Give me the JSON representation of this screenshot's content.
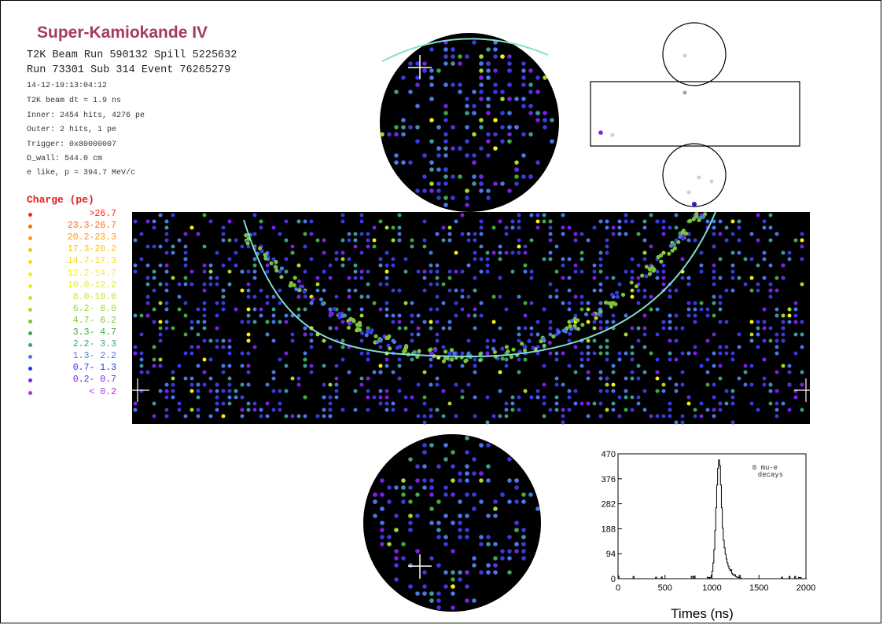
{
  "header": {
    "title": "Super-Kamiokande IV",
    "line1": "T2K Beam Run 590132 Spill 5225632",
    "line2": "Run 73301 Sub 314 Event 76265279",
    "details": [
      "14-12-19:13:04:12",
      "T2K beam dt =      1.9 ns",
      "Inner: 2454 hits, 4276 pe",
      "Outer: 2 hits, 1 pe",
      "Trigger: 0x80000007",
      "D_wall: 544.0 cm",
      "e like, p = 394.7 MeV/c"
    ]
  },
  "charge_legend": {
    "title": "Charge (pe)",
    "items": [
      {
        "label": ">26.7",
        "color": "#ff2020"
      },
      {
        "label": "23.3-26.7",
        "color": "#ff6a10"
      },
      {
        "label": "20.2-23.3",
        "color": "#ff9a10"
      },
      {
        "label": "17.3-20.2",
        "color": "#ffbe10"
      },
      {
        "label": "14.7-17.3",
        "color": "#ffd810"
      },
      {
        "label": "12.2-14.7",
        "color": "#f5f010"
      },
      {
        "label": "10.0-12.2",
        "color": "#e6f01a"
      },
      {
        "label": " 8.0-10.0",
        "color": "#c8e628"
      },
      {
        "label": " 6.2- 8.0",
        "color": "#a6d830"
      },
      {
        "label": " 4.7- 6.2",
        "color": "#7cc43a"
      },
      {
        "label": " 3.3- 4.7",
        "color": "#3fa848"
      },
      {
        "label": " 2.2- 3.3",
        "color": "#3c9a9a"
      },
      {
        "label": " 1.3- 2.2",
        "color": "#4a78e6"
      },
      {
        "label": " 0.7- 1.3",
        "color": "#3030e0"
      },
      {
        "label": " 0.2- 0.7",
        "color": "#7a20e8"
      },
      {
        "label": "< 0.2",
        "color": "#b030e0"
      }
    ]
  },
  "histogram": {
    "annotation_line1": "0 mu-e",
    "annotation_line2": "decays",
    "xlabel": "Times (ns)",
    "yticks": [
      0,
      94,
      188,
      282,
      376,
      470
    ],
    "xticks": [
      0,
      500,
      1000,
      1500,
      2000
    ],
    "xlim": [
      0,
      2000
    ],
    "ylim": [
      0,
      470
    ]
  },
  "colors": {
    "detector_bg": "#000000",
    "ring_fit": "#7fe0d0",
    "title": "#a53a63",
    "charge_title": "#e02020"
  }
}
